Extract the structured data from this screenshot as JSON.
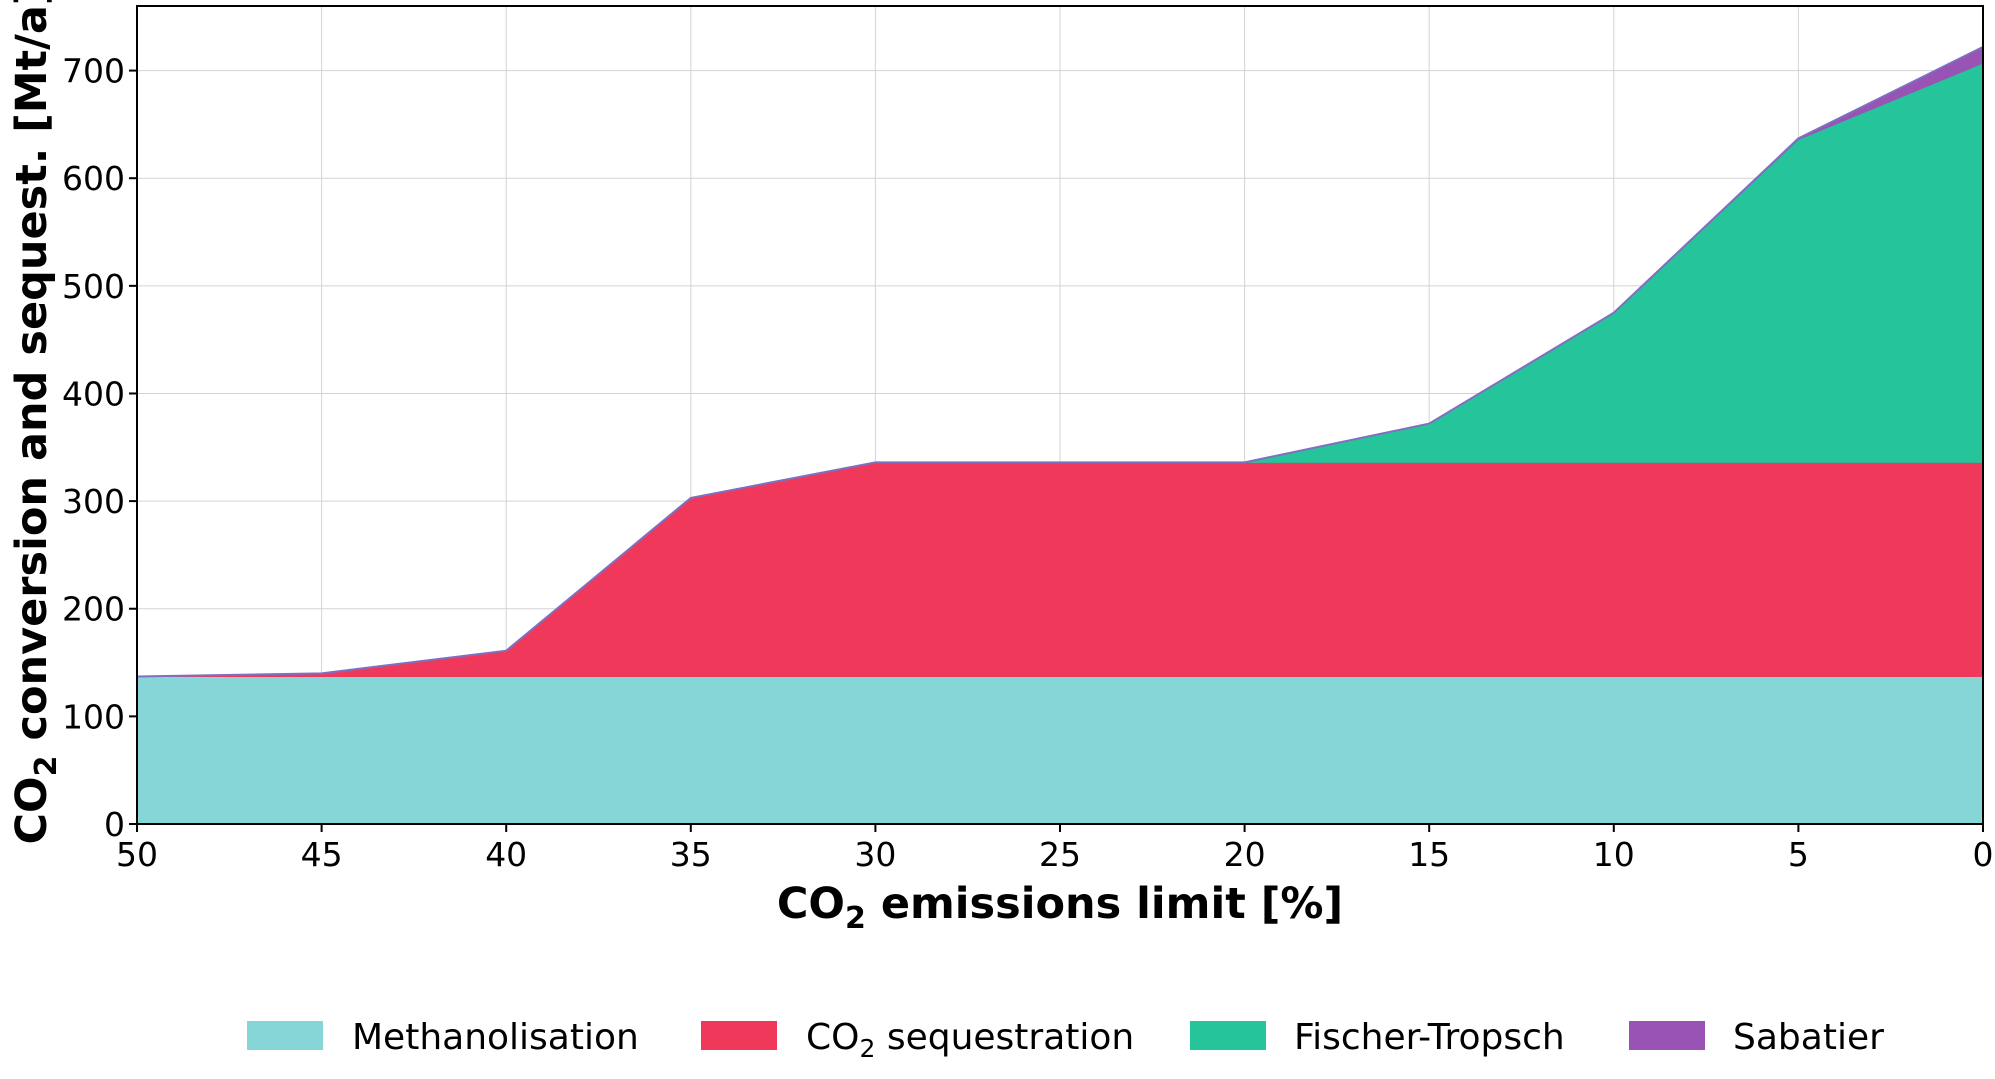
{
  "chart_data": {
    "type": "area",
    "stacked": true,
    "x": [
      50,
      45,
      40,
      35,
      30,
      25,
      20,
      15,
      10,
      5,
      0
    ],
    "x_ticks": [
      "50",
      "45",
      "40",
      "35",
      "30",
      "25",
      "20",
      "15",
      "10",
      "5",
      "0"
    ],
    "xlim": [
      50,
      0
    ],
    "ylim": [
      0,
      760
    ],
    "y_ticks": [
      "0",
      "100",
      "200",
      "300",
      "400",
      "500",
      "600",
      "700"
    ],
    "y_tick_values": [
      0,
      100,
      200,
      300,
      400,
      500,
      600,
      700
    ],
    "xlabel": {
      "pre": "CO",
      "sub": "2",
      "post": " emissions limit [%]"
    },
    "ylabel": {
      "pre": "CO",
      "sub": "2",
      "post": " conversion and sequest. [Mt/a]"
    },
    "grid": true,
    "legend_placement": "bottom-center",
    "series": [
      {
        "name": {
          "pre": "Methanolisation",
          "sub": "",
          "post": ""
        },
        "color": "#86d5d7",
        "values": [
          137,
          137,
          137,
          137,
          137,
          137,
          137,
          137,
          137,
          137,
          137
        ]
      },
      {
        "name": {
          "pre": "CO",
          "sub": "2",
          "post": " sequestration"
        },
        "color": "#f0385b",
        "values": [
          0,
          3,
          24,
          166,
          199,
          199,
          199,
          199,
          199,
          199,
          199
        ]
      },
      {
        "name": {
          "pre": "Fischer-Tropsch",
          "sub": "",
          "post": ""
        },
        "color": "#25c49a",
        "values": [
          0,
          0,
          0,
          0,
          0,
          0,
          0,
          36,
          139,
          300,
          371
        ]
      },
      {
        "name": {
          "pre": "Sabatier",
          "sub": "",
          "post": ""
        },
        "color": "#9853b4",
        "values": [
          0,
          0,
          0,
          0,
          0,
          0,
          0,
          0,
          0,
          1,
          15
        ]
      }
    ]
  }
}
